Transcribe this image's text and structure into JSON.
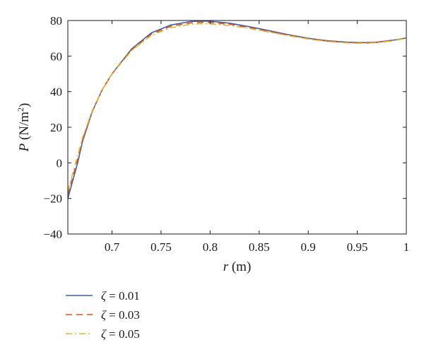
{
  "chart_data": {
    "type": "line",
    "xlabel": {
      "var": "r",
      "unit": " (m)"
    },
    "ylabel": {
      "var": "P",
      "unit_pre": " (N/m",
      "unit_sup": "2",
      "unit_post": ")"
    },
    "xlim": [
      0.655,
      1.0
    ],
    "ylim": [
      -40,
      80
    ],
    "xticks": [
      0.7,
      0.75,
      0.8,
      0.85,
      0.9,
      0.95,
      1
    ],
    "xtick_labels": [
      "0.7",
      "0.75",
      "0.8",
      "0.85",
      "0.9",
      "0.95",
      "1"
    ],
    "yticks": [
      -40,
      -20,
      0,
      20,
      40,
      60,
      80
    ],
    "ytick_labels": [
      "−40",
      "−20",
      "0",
      "20",
      "40",
      "60",
      "80"
    ],
    "grid": false,
    "legend_position": "below-left",
    "series": [
      {
        "name": "ζ = 0.01",
        "name_symbol": "ζ",
        "name_rest": " = 0.01",
        "color": "#3a5fb0",
        "dash": "solid",
        "x": [
          0.655,
          0.66,
          0.665,
          0.67,
          0.68,
          0.69,
          0.7,
          0.72,
          0.74,
          0.76,
          0.78,
          0.79,
          0.8,
          0.82,
          0.84,
          0.86,
          0.88,
          0.9,
          0.92,
          0.94,
          0.95,
          0.96,
          0.97,
          0.98,
          0.99,
          1.0
        ],
        "y": [
          -20,
          -10,
          0,
          12,
          29,
          41,
          50,
          64,
          73,
          77.5,
          79.4,
          79.7,
          79.6,
          78.5,
          76.5,
          74.3,
          72,
          70,
          68.6,
          67.8,
          67.6,
          67.6,
          67.9,
          68.5,
          69.2,
          70.2
        ]
      },
      {
        "name": "ζ = 0.03",
        "name_symbol": "ζ",
        "name_rest": " = 0.03",
        "color": "#d9541e",
        "dash": "9,6",
        "x": [
          0.655,
          0.66,
          0.665,
          0.67,
          0.68,
          0.69,
          0.7,
          0.72,
          0.74,
          0.76,
          0.78,
          0.79,
          0.8,
          0.82,
          0.84,
          0.86,
          0.88,
          0.9,
          0.92,
          0.94,
          0.95,
          0.96,
          0.97,
          0.98,
          0.99,
          1.0
        ],
        "y": [
          -18,
          -8,
          2,
          13,
          29,
          41,
          50,
          63.5,
          72.3,
          76.8,
          78.6,
          79.0,
          78.9,
          77.9,
          76,
          73.9,
          71.7,
          69.8,
          68.4,
          67.6,
          67.4,
          67.4,
          67.7,
          68.3,
          69.1,
          70.1
        ]
      },
      {
        "name": "ζ = 0.05",
        "name_symbol": "ζ",
        "name_rest": " = 0.05",
        "color": "#edb120",
        "dash": "9,4,2,4",
        "x": [
          0.655,
          0.66,
          0.665,
          0.67,
          0.68,
          0.69,
          0.7,
          0.72,
          0.74,
          0.76,
          0.78,
          0.79,
          0.8,
          0.82,
          0.84,
          0.86,
          0.88,
          0.9,
          0.92,
          0.94,
          0.95,
          0.96,
          0.97,
          0.98,
          0.99,
          1.0
        ],
        "y": [
          -16,
          -6,
          4,
          14,
          29.5,
          41,
          50,
          63,
          71.6,
          76,
          77.8,
          78.2,
          78.1,
          77.2,
          75.5,
          73.5,
          71.4,
          69.6,
          68.2,
          67.4,
          67.2,
          67.3,
          67.6,
          68.2,
          69,
          70
        ]
      }
    ]
  }
}
